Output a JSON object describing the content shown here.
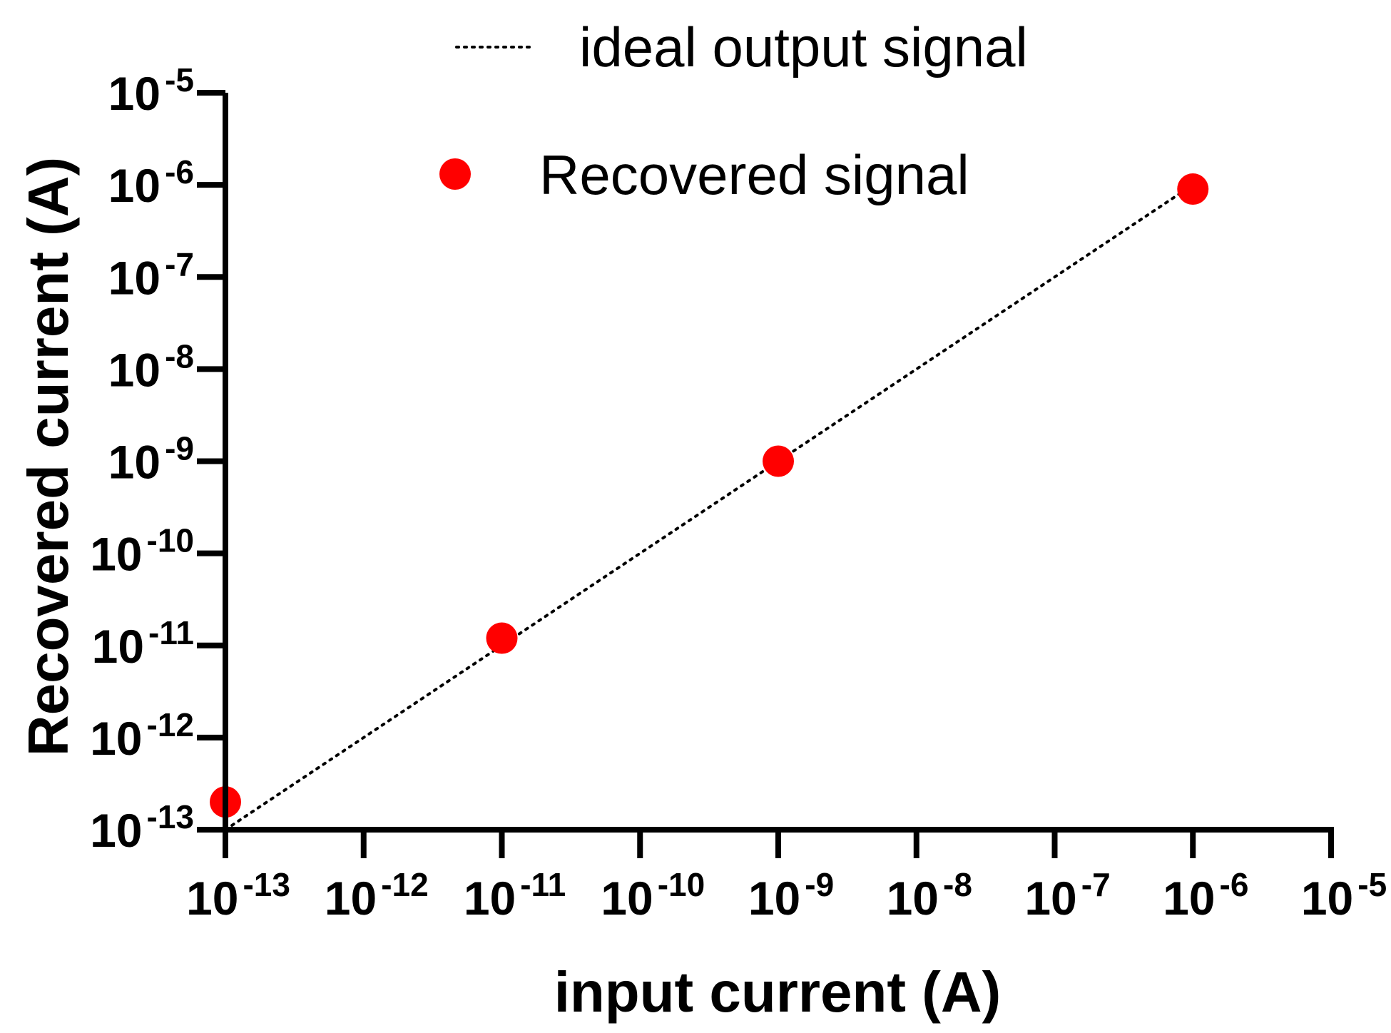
{
  "chart_data": {
    "type": "scatter",
    "xlabel": "input current (A)",
    "ylabel": "Recovered current (A)",
    "xscale": "log",
    "yscale": "log",
    "xlim": [
      1e-13,
      1e-05
    ],
    "ylim": [
      1e-13,
      1e-05
    ],
    "x_ticks": [
      {
        "base": "10",
        "exp": "-13",
        "value": 1e-13
      },
      {
        "base": "10",
        "exp": "-12",
        "value": 1e-12
      },
      {
        "base": "10",
        "exp": "-11",
        "value": 1e-11
      },
      {
        "base": "10",
        "exp": "-10",
        "value": 1e-10
      },
      {
        "base": "10",
        "exp": "-9",
        "value": 1e-09
      },
      {
        "base": "10",
        "exp": "-8",
        "value": 1e-08
      },
      {
        "base": "10",
        "exp": "-7",
        "value": 1e-07
      },
      {
        "base": "10",
        "exp": "-6",
        "value": 1e-06
      },
      {
        "base": "10",
        "exp": "-5",
        "value": 1e-05
      }
    ],
    "y_ticks": [
      {
        "base": "10",
        "exp": "-13",
        "value": 1e-13
      },
      {
        "base": "10",
        "exp": "-12",
        "value": 1e-12
      },
      {
        "base": "10",
        "exp": "-11",
        "value": 1e-11
      },
      {
        "base": "10",
        "exp": "-10",
        "value": 1e-10
      },
      {
        "base": "10",
        "exp": "-9",
        "value": 1e-09
      },
      {
        "base": "10",
        "exp": "-8",
        "value": 1e-08
      },
      {
        "base": "10",
        "exp": "-7",
        "value": 1e-07
      },
      {
        "base": "10",
        "exp": "-6",
        "value": 1e-06
      },
      {
        "base": "10",
        "exp": "-5",
        "value": 1e-05
      }
    ],
    "series": [
      {
        "name": "ideal output signal",
        "kind": "dotted-line",
        "color": "#000000",
        "x": [
          1e-13,
          1e-06
        ],
        "y": [
          1e-13,
          1e-06
        ]
      },
      {
        "name": "Recovered signal",
        "kind": "markers",
        "color": "#ff0000",
        "x": [
          1e-13,
          1e-11,
          1e-09,
          1e-06
        ],
        "y": [
          2e-13,
          1.2e-11,
          1e-09,
          9e-07
        ]
      }
    ],
    "legend": "top-center",
    "grid": false
  }
}
